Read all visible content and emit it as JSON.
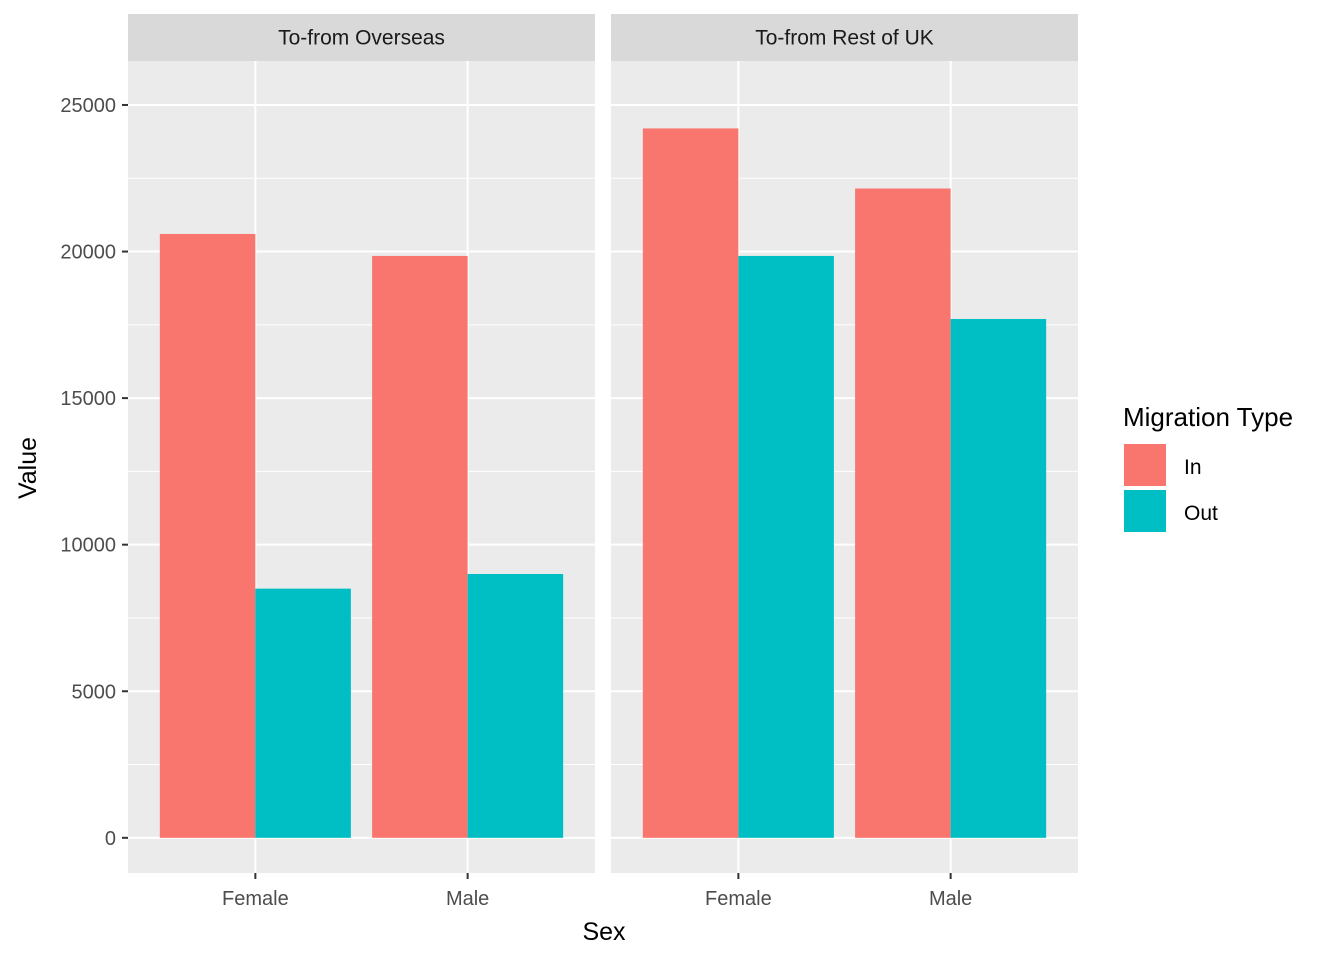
{
  "chart_data": {
    "type": "bar",
    "xlabel": "Sex",
    "ylabel": "Value",
    "ylim": [
      -1200,
      26500
    ],
    "y_ticks": [
      0,
      5000,
      10000,
      15000,
      20000,
      25000
    ],
    "categories": [
      "Female",
      "Male"
    ],
    "legend": {
      "title": "Migration Type",
      "placement": "right",
      "entries": [
        {
          "name": "In",
          "color": "#F8766D"
        },
        {
          "name": "Out",
          "color": "#00BFC4"
        }
      ]
    },
    "colors": {
      "panel_bg": "#EBEBEB",
      "strip_bg": "#D9D9D9",
      "grid": "#FFFFFF",
      "tick": "#333333"
    },
    "facets": [
      {
        "title": "To-from Overseas",
        "series": [
          {
            "name": "In",
            "values": [
              20600,
              19850
            ]
          },
          {
            "name": "Out",
            "values": [
              8500,
              9000
            ]
          }
        ]
      },
      {
        "title": "To-from Rest of UK",
        "series": [
          {
            "name": "In",
            "values": [
              24200,
              22150
            ]
          },
          {
            "name": "Out",
            "values": [
              19850,
              17700
            ]
          }
        ]
      }
    ]
  }
}
